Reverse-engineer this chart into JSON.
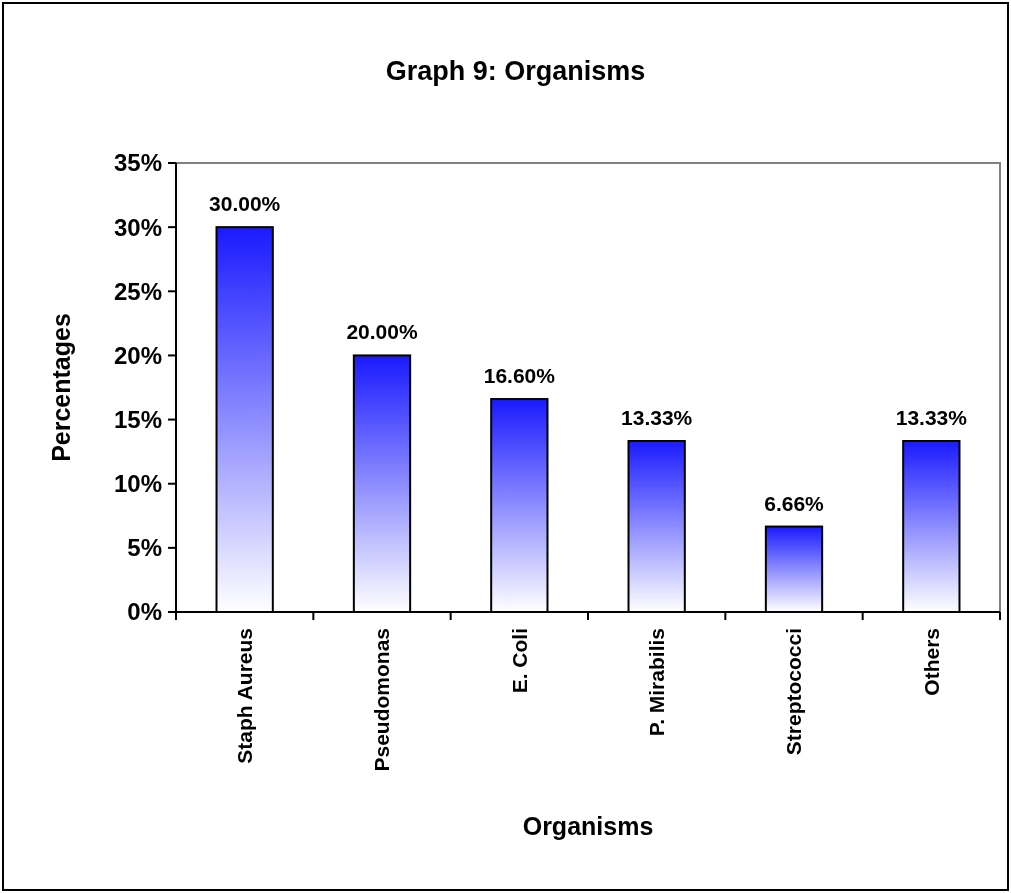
{
  "chart_data": {
    "type": "bar",
    "title": "Graph 9: Organisms",
    "xlabel": "Organisms",
    "ylabel": "Percentages",
    "categories": [
      "Staph Aureus",
      "Pseudomonas",
      "E. Coli",
      "P. Mirabilis",
      "Streptococci",
      "Others"
    ],
    "values": [
      30,
      20,
      16.6,
      13.33,
      6.66,
      13.33
    ],
    "value_labels": [
      "30.00%",
      "20.00%",
      "16.60%",
      "13.33%",
      "6.66%",
      "13.33%"
    ],
    "color": "#1a1aff",
    "ylim": [
      0,
      35
    ],
    "yticks": [
      {
        "value": 0,
        "label": "0%"
      },
      {
        "value": 5,
        "label": "5%"
      },
      {
        "value": 10,
        "label": "10%"
      },
      {
        "value": 15,
        "label": "15%"
      },
      {
        "value": 20,
        "label": "20%"
      },
      {
        "value": 25,
        "label": "25%"
      },
      {
        "value": 30,
        "label": "30%"
      },
      {
        "value": 35,
        "label": "35%"
      }
    ],
    "grid": false
  }
}
